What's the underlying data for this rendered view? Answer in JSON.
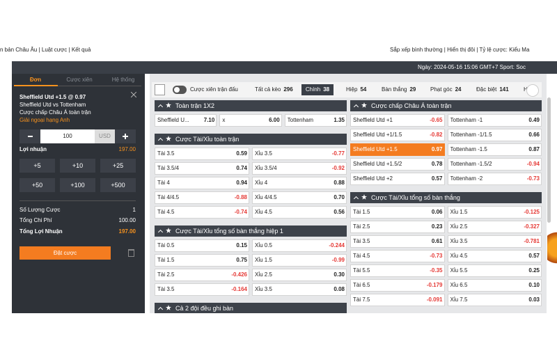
{
  "top_links_left": "n bản Châu Âu | Luật cược | Kết quả",
  "top_links_right": "Sắp xếp bình thường | Hiển thị đôi | Tỷ lệ cược: Kiểu Ma",
  "date_bar": "Ngày:  2024-05-16 15:06 GMT+7 Sport: Soc",
  "betslip": {
    "tabs": [
      "Đơn",
      "Cược xiên",
      "Hệ thống"
    ],
    "selection": "Sheffield Utd +1.5 @ 0.97",
    "match": "Sheffield Utd vs Tottenham",
    "market": "Cược chấp Châu Á toàn trận",
    "league": "Giải ngoại hạng Anh",
    "stake": "100",
    "currency": "USD",
    "profit_label": "Lợi nhuận",
    "profit": "197.00",
    "quick_amounts": [
      "+5",
      "+10",
      "+25",
      "+50",
      "+100",
      "+500"
    ],
    "summary": [
      {
        "label": "Số Lượng Cược",
        "value": "1"
      },
      {
        "label": "Tổng Chi Phí",
        "value": "100.00"
      },
      {
        "label": "Tổng Lợi Nhuận",
        "value": "197.00"
      }
    ],
    "place_bet": "Đặt cược"
  },
  "toolbar": {
    "parlay_toggle": "Cược xiên trận đấu",
    "tabs": [
      {
        "label": "Tất cả kèo",
        "count": "296"
      },
      {
        "label": "Chính",
        "count": "38",
        "selected": true
      },
      {
        "label": "Hiệp",
        "count": "54"
      },
      {
        "label": "Bàn thắng",
        "count": "29"
      },
      {
        "label": "Phạt góc",
        "count": "24"
      },
      {
        "label": "Đặc biệt",
        "count": "141"
      },
      {
        "label": "H",
        "count": ""
      }
    ]
  },
  "left_column": [
    {
      "title": "Toàn trận 1X2",
      "rows": [
        [
          {
            "label": "Sheffield U...",
            "odds": "7.10"
          },
          {
            "label": "x",
            "odds": "6.00"
          },
          {
            "label": "Tottenham",
            "odds": "1.35"
          }
        ]
      ]
    },
    {
      "title": "Cược Tài/Xỉu toàn trận",
      "rows": [
        [
          {
            "label": "Tài 3.5",
            "odds": "0.59"
          },
          {
            "label": "Xỉu 3.5",
            "odds": "-0.77"
          }
        ],
        [
          {
            "label": "Tài 3.5/4",
            "odds": "0.74"
          },
          {
            "label": "Xỉu 3.5/4",
            "odds": "-0.92"
          }
        ],
        [
          {
            "label": "Tài 4",
            "odds": "0.94"
          },
          {
            "label": "Xỉu 4",
            "odds": "0.88"
          }
        ],
        [
          {
            "label": "Tài 4/4.5",
            "odds": "-0.88"
          },
          {
            "label": "Xỉu 4/4.5",
            "odds": "0.70"
          }
        ],
        [
          {
            "label": "Tài 4.5",
            "odds": "-0.74"
          },
          {
            "label": "Xỉu 4.5",
            "odds": "0.56"
          }
        ]
      ]
    },
    {
      "title": "Cược Tài/Xỉu tổng số bàn thắng hiệp 1",
      "rows": [
        [
          {
            "label": "Tài 0.5",
            "odds": "0.15"
          },
          {
            "label": "Xỉu 0.5",
            "odds": "-0.244"
          }
        ],
        [
          {
            "label": "Tài 1.5",
            "odds": "0.75"
          },
          {
            "label": "Xỉu 1.5",
            "odds": "-0.99"
          }
        ],
        [
          {
            "label": "Tài 2.5",
            "odds": "-0.426"
          },
          {
            "label": "Xỉu 2.5",
            "odds": "0.30"
          }
        ],
        [
          {
            "label": "Tài 3.5",
            "odds": "-0.164"
          },
          {
            "label": "Xỉu 3.5",
            "odds": "0.08"
          }
        ]
      ]
    },
    {
      "title": "Cả 2 đội đều ghi bàn",
      "rows": []
    }
  ],
  "right_column": [
    {
      "title": "Cược chấp Châu Á toàn trận",
      "rows": [
        [
          {
            "label": "Sheffield Utd +1",
            "odds": "-0.65"
          },
          {
            "label": "Tottenham -1",
            "odds": "0.49"
          }
        ],
        [
          {
            "label": "Sheffield Utd +1/1.5",
            "odds": "-0.82"
          },
          {
            "label": "Tottenham -1/1.5",
            "odds": "0.66"
          }
        ],
        [
          {
            "label": "Sheffield Utd +1.5",
            "odds": "0.97",
            "selected": true
          },
          {
            "label": "Tottenham -1.5",
            "odds": "0.87"
          }
        ],
        [
          {
            "label": "Sheffield Utd +1.5/2",
            "odds": "0.78"
          },
          {
            "label": "Tottenham -1.5/2",
            "odds": "-0.94"
          }
        ],
        [
          {
            "label": "Sheffield Utd +2",
            "odds": "0.57"
          },
          {
            "label": "Tottenham -2",
            "odds": "-0.73"
          }
        ]
      ]
    },
    {
      "title": "Cược Tài/Xỉu tổng số bàn thắng",
      "rows": [
        [
          {
            "label": "Tài 1.5",
            "odds": "0.06"
          },
          {
            "label": "Xỉu 1.5",
            "odds": "-0.125"
          }
        ],
        [
          {
            "label": "Tài 2.5",
            "odds": "0.23"
          },
          {
            "label": "Xỉu 2.5",
            "odds": "-0.327"
          }
        ],
        [
          {
            "label": "Tài 3.5",
            "odds": "0.61"
          },
          {
            "label": "Xỉu 3.5",
            "odds": "-0.781"
          }
        ],
        [
          {
            "label": "Tài 4.5",
            "odds": "-0.73"
          },
          {
            "label": "Xỉu 4.5",
            "odds": "0.57"
          }
        ],
        [
          {
            "label": "Tài 5.5",
            "odds": "-0.35"
          },
          {
            "label": "Xỉu 5.5",
            "odds": "0.25"
          }
        ],
        [
          {
            "label": "Tài 6.5",
            "odds": "-0.179"
          },
          {
            "label": "Xỉu 6.5",
            "odds": "0.10"
          }
        ],
        [
          {
            "label": "Tài 7.5",
            "odds": "-0.091"
          },
          {
            "label": "Xỉu 7.5",
            "odds": "0.03"
          }
        ]
      ]
    }
  ]
}
